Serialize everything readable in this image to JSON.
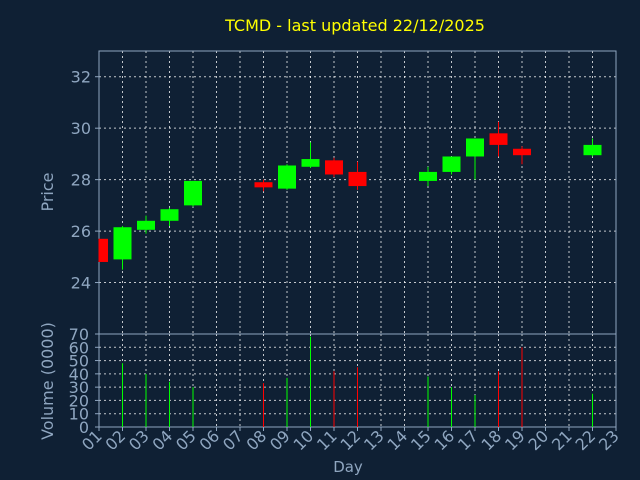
{
  "chart_data": {
    "type": "candlestick",
    "title": "TCMD - last updated 22/12/2025",
    "xlabel": "Day",
    "price_ylabel": "Price",
    "volume_ylabel": "Volume (0000)",
    "x_ticks": [
      "01",
      "02",
      "03",
      "04",
      "05",
      "06",
      "07",
      "08",
      "09",
      "10",
      "11",
      "12",
      "13",
      "14",
      "15",
      "16",
      "17",
      "18",
      "19",
      "20",
      "21",
      "22",
      "23"
    ],
    "price_ylim": [
      22.0,
      33.0
    ],
    "price_yticks": [
      24,
      26,
      28,
      30,
      32
    ],
    "volume_ylim": [
      0,
      70
    ],
    "volume_yticks": [
      0,
      10,
      20,
      30,
      40,
      50,
      60,
      70
    ],
    "grid": true,
    "colors": {
      "up": "#00ff00",
      "down": "#ff0000",
      "grid": "#ffffff",
      "axes": "#8fa6c0",
      "title": "#ffff00",
      "background": "#0f2034"
    },
    "candles": [
      {
        "day": 1,
        "open": 25.7,
        "high": 25.7,
        "low": 24.8,
        "close": 24.8,
        "volume": 0
      },
      {
        "day": 2,
        "open": 24.9,
        "high": 26.2,
        "low": 24.5,
        "close": 26.15,
        "volume": 48
      },
      {
        "day": 3,
        "open": 26.05,
        "high": 26.6,
        "low": 25.9,
        "close": 26.4,
        "volume": 40
      },
      {
        "day": 4,
        "open": 26.4,
        "high": 26.9,
        "low": 26.2,
        "close": 26.85,
        "volume": 34
      },
      {
        "day": 5,
        "open": 27.0,
        "high": 27.95,
        "low": 26.95,
        "close": 27.95,
        "volume": 30
      },
      {
        "day": 8,
        "open": 27.9,
        "high": 28.0,
        "low": 27.55,
        "close": 27.7,
        "volume": 33
      },
      {
        "day": 9,
        "open": 27.65,
        "high": 28.6,
        "low": 27.6,
        "close": 28.55,
        "volume": 37
      },
      {
        "day": 10,
        "open": 28.5,
        "high": 29.45,
        "low": 28.45,
        "close": 28.8,
        "volume": 68
      },
      {
        "day": 11,
        "open": 28.75,
        "high": 28.85,
        "low": 28.1,
        "close": 28.2,
        "volume": 42
      },
      {
        "day": 12,
        "open": 28.3,
        "high": 28.7,
        "low": 27.6,
        "close": 27.75,
        "volume": 45
      },
      {
        "day": 15,
        "open": 27.95,
        "high": 28.5,
        "low": 27.75,
        "close": 28.3,
        "volume": 38
      },
      {
        "day": 16,
        "open": 28.3,
        "high": 28.9,
        "low": 28.2,
        "close": 28.9,
        "volume": 30
      },
      {
        "day": 17,
        "open": 28.9,
        "high": 29.6,
        "low": 28.0,
        "close": 29.6,
        "volume": 24
      },
      {
        "day": 18,
        "open": 29.8,
        "high": 30.25,
        "low": 28.9,
        "close": 29.35,
        "volume": 42
      },
      {
        "day": 19,
        "open": 29.2,
        "high": 29.3,
        "low": 28.6,
        "close": 28.95,
        "volume": 60
      },
      {
        "day": 22,
        "open": 28.95,
        "high": 29.6,
        "low": 28.9,
        "close": 29.35,
        "volume": 25
      }
    ]
  }
}
